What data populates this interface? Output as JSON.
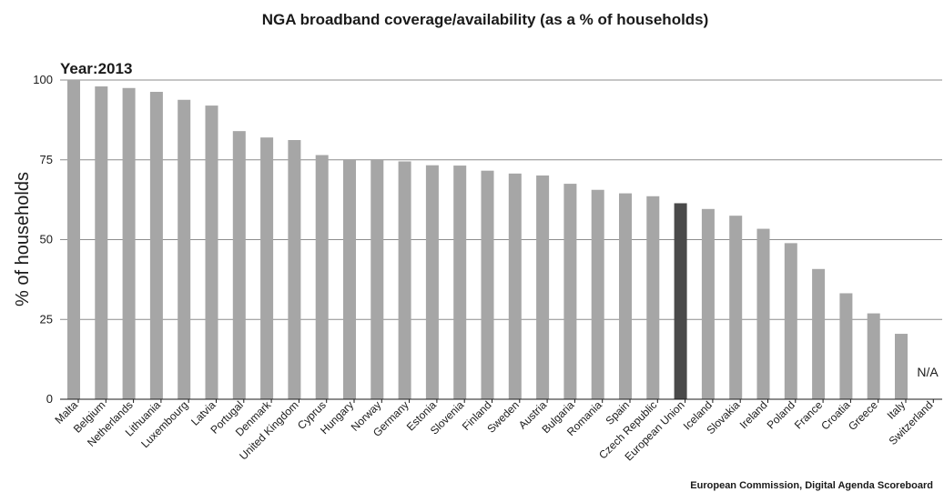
{
  "colors": {
    "bar": "#a6a6a6",
    "highlight": "#4a4a4a",
    "grid": "#8c8c8c",
    "text": "#1a1a1a"
  },
  "chart_data": {
    "type": "bar",
    "title": "NGA broadband coverage/availability (as a % of households)",
    "year_label": "Year:2013",
    "ylabel": "% of households",
    "xlabel": "",
    "ylim": [
      0,
      100
    ],
    "yticks": [
      0,
      25,
      50,
      75,
      100
    ],
    "grid": true,
    "highlight_category": "European Union",
    "na_label": "N/A",
    "source": "European Commission, Digital Agenda Scoreboard",
    "categories": [
      "Malta",
      "Belgium",
      "Netherlands",
      "Lithuania",
      "Luxembourg",
      "Latvia",
      "Portugal",
      "Denmark",
      "United Kingdom",
      "Cyprus",
      "Hungary",
      "Norway",
      "Germany",
      "Estonia",
      "Slovenia",
      "Finland",
      "Sweden",
      "Austria",
      "Bulgaria",
      "Romania",
      "Spain",
      "Czech Republic",
      "European Union",
      "Iceland",
      "Slovakia",
      "Ireland",
      "Poland",
      "France",
      "Croatia",
      "Greece",
      "Italy",
      "Switzerland"
    ],
    "values": [
      100,
      98,
      97.5,
      96.3,
      93.8,
      92,
      84,
      82,
      81.2,
      76.5,
      75.2,
      75.2,
      74.5,
      73.3,
      73.2,
      71.6,
      70.7,
      70.1,
      67.5,
      65.6,
      64.5,
      63.6,
      61.4,
      59.6,
      57.5,
      53.4,
      48.9,
      40.8,
      33.2,
      26.9,
      20.5,
      null
    ]
  }
}
